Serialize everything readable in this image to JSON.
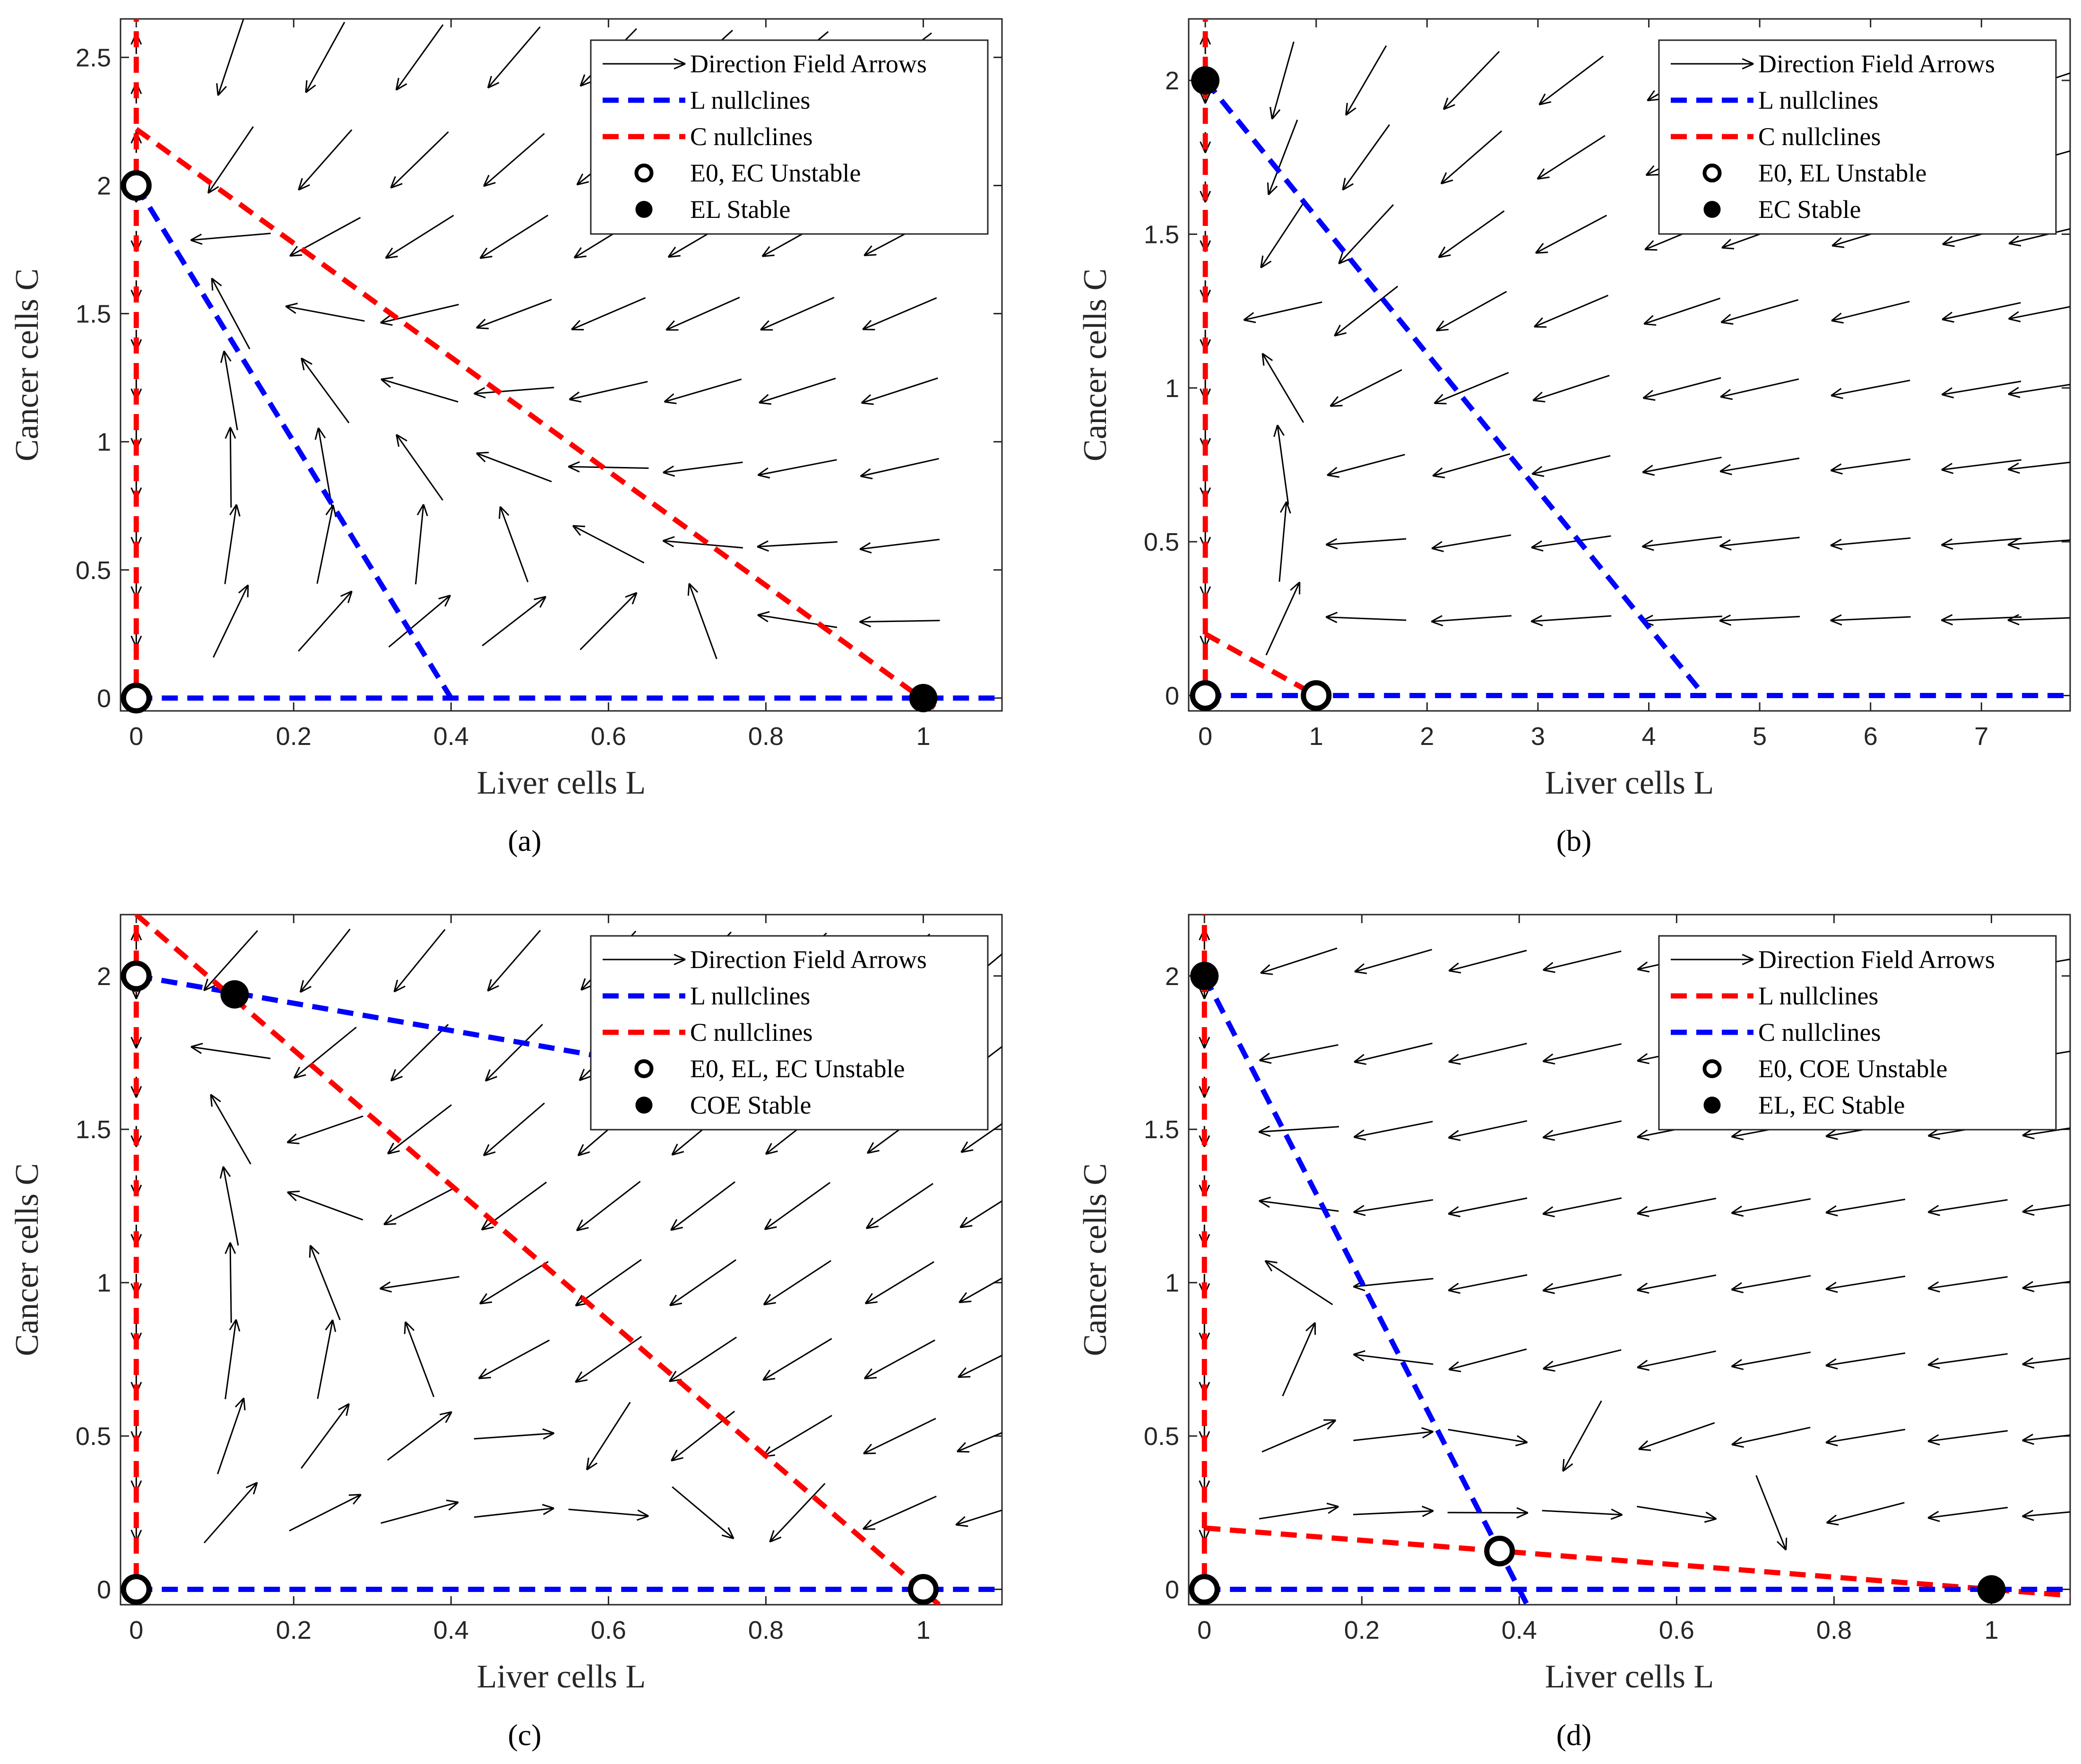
{
  "chart_data": [
    {
      "type": "scatter",
      "subplot": "(a)",
      "xlabel": "Liver cells L",
      "ylabel": "Cancer cells C",
      "xlim": [
        -0.02,
        1.1
      ],
      "ylim": [
        -0.05,
        2.65
      ],
      "xticks": [
        0,
        0.2,
        0.4,
        0.6,
        0.8,
        1
      ],
      "yticks": [
        0,
        0.5,
        1,
        1.5,
        2,
        2.5
      ],
      "legend_position": "top-right",
      "legend": {
        "arrows": "Direction Field Arrows",
        "l_nullclines": "L nullclines",
        "c_nullclines": "C nullclines",
        "unstable": "E0, EC Unstable",
        "stable": "EL Stable"
      },
      "l_nullcline_color": "#0000ff",
      "c_nullcline_color": "#ff0000",
      "nullcline_lines": [
        {
          "kind": "L",
          "points": [
            [
              0,
              2
            ],
            [
              0.4,
              0
            ]
          ]
        },
        {
          "kind": "L",
          "points": [
            [
              0,
              0
            ],
            [
              1.1,
              0
            ]
          ]
        },
        {
          "kind": "C",
          "points": [
            [
              0,
              2.22
            ],
            [
              1.02,
              -0.05
            ]
          ]
        },
        {
          "kind": "C",
          "points": [
            [
              0,
              -0.05
            ],
            [
              0,
              2.65
            ]
          ]
        }
      ],
      "unstable_points": [
        [
          0,
          0
        ],
        [
          0,
          2
        ]
      ],
      "stable_points": [
        [
          1,
          0
        ]
      ]
    },
    {
      "type": "scatter",
      "subplot": "(b)",
      "xlabel": "Liver cells L",
      "ylabel": "Cancer cells C",
      "xlim": [
        -0.15,
        7.8
      ],
      "ylim": [
        -0.05,
        2.2
      ],
      "xticks": [
        0,
        1,
        2,
        3,
        4,
        5,
        6,
        7
      ],
      "yticks": [
        0,
        0.5,
        1,
        1.5,
        2
      ],
      "legend_position": "top-right",
      "legend": {
        "arrows": "Direction Field Arrows",
        "l_nullclines": "L nullclines",
        "c_nullclines": "C nullclines",
        "unstable": "E0, EL Unstable",
        "stable": "EC Stable"
      },
      "l_nullcline_color": "#0000ff",
      "c_nullcline_color": "#ff0000",
      "nullcline_lines": [
        {
          "kind": "L",
          "points": [
            [
              0,
              2
            ],
            [
              4.5,
              0
            ]
          ]
        },
        {
          "kind": "L",
          "points": [
            [
              0,
              0
            ],
            [
              7.8,
              0
            ]
          ]
        },
        {
          "kind": "C",
          "points": [
            [
              0,
              0.2
            ],
            [
              1.1,
              -0.02
            ]
          ]
        },
        {
          "kind": "C",
          "points": [
            [
              0,
              -0.05
            ],
            [
              0,
              2.2
            ]
          ]
        }
      ],
      "unstable_points": [
        [
          0,
          0
        ],
        [
          1,
          0
        ]
      ],
      "stable_points": [
        [
          0,
          2
        ]
      ]
    },
    {
      "type": "scatter",
      "subplot": "(c)",
      "xlabel": "Liver cells L",
      "ylabel": "Cancer cells C",
      "xlim": [
        -0.02,
        1.1
      ],
      "ylim": [
        -0.05,
        2.2
      ],
      "xticks": [
        0,
        0.2,
        0.4,
        0.6,
        0.8,
        1
      ],
      "yticks": [
        0,
        0.5,
        1,
        1.5,
        2
      ],
      "legend_position": "top-right",
      "legend": {
        "arrows": "Direction Field Arrows",
        "l_nullclines": "L nullclines",
        "c_nullclines": "C nullclines",
        "unstable": "E0, EL, EC Unstable",
        "stable": "COE Stable"
      },
      "l_nullcline_color": "#0000ff",
      "c_nullcline_color": "#ff0000",
      "nullcline_lines": [
        {
          "kind": "L",
          "points": [
            [
              0,
              2
            ],
            [
              1.08,
              1.52
            ]
          ]
        },
        {
          "kind": "L",
          "points": [
            [
              0,
              0
            ],
            [
              1.1,
              0
            ]
          ]
        },
        {
          "kind": "C",
          "points": [
            [
              0,
              2.2
            ],
            [
              1.02,
              -0.05
            ]
          ]
        },
        {
          "kind": "C",
          "points": [
            [
              0,
              -0.05
            ],
            [
              0,
              2.2
            ]
          ]
        }
      ],
      "unstable_points": [
        [
          0,
          0
        ],
        [
          0,
          2
        ],
        [
          1,
          0
        ]
      ],
      "stable_points": [
        [
          0.125,
          1.94
        ]
      ]
    },
    {
      "type": "scatter",
      "subplot": "(d)",
      "xlabel": "Liver cells L",
      "ylabel": "Cancer cells C",
      "xlim": [
        -0.02,
        1.1
      ],
      "ylim": [
        -0.05,
        2.2
      ],
      "xticks": [
        0,
        0.2,
        0.4,
        0.6,
        0.8,
        1
      ],
      "yticks": [
        0,
        0.5,
        1,
        1.5,
        2
      ],
      "legend_position": "top-right",
      "legend": {
        "arrows": "Direction Field Arrows",
        "l_nullclines": "L nullclines",
        "c_nullclines": "C nullclines",
        "unstable": "E0, COE Unstable",
        "stable": "EL, EC Stable"
      },
      "l_nullcline_color": "#ff0000",
      "c_nullcline_color": "#0000ff",
      "nullcline_lines": [
        {
          "kind": "L",
          "points": [
            [
              0,
              0.2
            ],
            [
              1.1,
              -0.02
            ]
          ]
        },
        {
          "kind": "L",
          "points": [
            [
              0,
              -0.05
            ],
            [
              0,
              2.2
            ]
          ]
        },
        {
          "kind": "C",
          "points": [
            [
              0,
              2
            ],
            [
              0.41,
              -0.05
            ]
          ]
        },
        {
          "kind": "C",
          "points": [
            [
              0,
              0
            ],
            [
              1.1,
              0
            ]
          ]
        }
      ],
      "unstable_points": [
        [
          0,
          0
        ],
        [
          0.375,
          0.125
        ]
      ],
      "stable_points": [
        [
          0,
          2
        ],
        [
          1,
          0
        ]
      ]
    }
  ]
}
